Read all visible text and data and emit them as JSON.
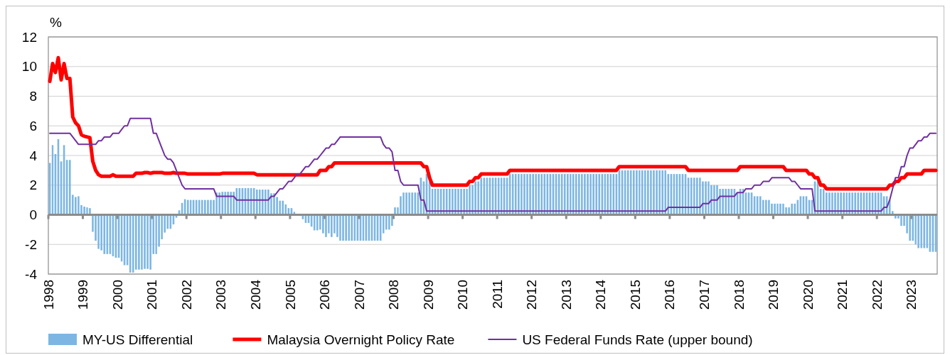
{
  "chart_data": {
    "type": "bar",
    "ylabel": "%",
    "x": [
      "1998-01",
      "1998-02",
      "1998-03",
      "1998-04",
      "1998-05",
      "1998-06",
      "1998-07",
      "1998-08",
      "1998-09",
      "1998-10",
      "1998-11",
      "1998-12",
      "1999-01",
      "1999-02",
      "1999-03",
      "1999-04",
      "1999-05",
      "1999-06",
      "1999-07",
      "1999-08",
      "1999-09",
      "1999-10",
      "1999-11",
      "1999-12",
      "2000-01",
      "2000-02",
      "2000-03",
      "2000-04",
      "2000-05",
      "2000-06",
      "2000-07",
      "2000-08",
      "2000-09",
      "2000-10",
      "2000-11",
      "2000-12",
      "2001-01",
      "2001-02",
      "2001-03",
      "2001-04",
      "2001-05",
      "2001-06",
      "2001-07",
      "2001-08",
      "2001-09",
      "2001-10",
      "2001-11",
      "2001-12",
      "2002-01",
      "2002-02",
      "2002-03",
      "2002-04",
      "2002-05",
      "2002-06",
      "2002-07",
      "2002-08",
      "2002-09",
      "2002-10",
      "2002-11",
      "2002-12",
      "2003-01",
      "2003-02",
      "2003-03",
      "2003-04",
      "2003-05",
      "2003-06",
      "2003-07",
      "2003-08",
      "2003-09",
      "2003-10",
      "2003-11",
      "2003-12",
      "2004-01",
      "2004-02",
      "2004-03",
      "2004-04",
      "2004-05",
      "2004-06",
      "2004-07",
      "2004-08",
      "2004-09",
      "2004-10",
      "2004-11",
      "2004-12",
      "2005-01",
      "2005-02",
      "2005-03",
      "2005-04",
      "2005-05",
      "2005-06",
      "2005-07",
      "2005-08",
      "2005-09",
      "2005-10",
      "2005-11",
      "2005-12",
      "2006-01",
      "2006-02",
      "2006-03",
      "2006-04",
      "2006-05",
      "2006-06",
      "2006-07",
      "2006-08",
      "2006-09",
      "2006-10",
      "2006-11",
      "2006-12",
      "2007-01",
      "2007-02",
      "2007-03",
      "2007-04",
      "2007-05",
      "2007-06",
      "2007-07",
      "2007-08",
      "2007-09",
      "2007-10",
      "2007-11",
      "2007-12",
      "2008-01",
      "2008-02",
      "2008-03",
      "2008-04",
      "2008-05",
      "2008-06",
      "2008-07",
      "2008-08",
      "2008-09",
      "2008-10",
      "2008-11",
      "2008-12",
      "2009-01",
      "2009-02",
      "2009-03",
      "2009-04",
      "2009-05",
      "2009-06",
      "2009-07",
      "2009-08",
      "2009-09",
      "2009-10",
      "2009-11",
      "2009-12",
      "2010-01",
      "2010-02",
      "2010-03",
      "2010-04",
      "2010-05",
      "2010-06",
      "2010-07",
      "2010-08",
      "2010-09",
      "2010-10",
      "2010-11",
      "2010-12",
      "2011-01",
      "2011-02",
      "2011-03",
      "2011-04",
      "2011-05",
      "2011-06",
      "2011-07",
      "2011-08",
      "2011-09",
      "2011-10",
      "2011-11",
      "2011-12",
      "2012-01",
      "2012-02",
      "2012-03",
      "2012-04",
      "2012-05",
      "2012-06",
      "2012-07",
      "2012-08",
      "2012-09",
      "2012-10",
      "2012-11",
      "2012-12",
      "2013-01",
      "2013-02",
      "2013-03",
      "2013-04",
      "2013-05",
      "2013-06",
      "2013-07",
      "2013-08",
      "2013-09",
      "2013-10",
      "2013-11",
      "2013-12",
      "2014-01",
      "2014-02",
      "2014-03",
      "2014-04",
      "2014-05",
      "2014-06",
      "2014-07",
      "2014-08",
      "2014-09",
      "2014-10",
      "2014-11",
      "2014-12",
      "2015-01",
      "2015-02",
      "2015-03",
      "2015-04",
      "2015-05",
      "2015-06",
      "2015-07",
      "2015-08",
      "2015-09",
      "2015-10",
      "2015-11",
      "2015-12",
      "2016-01",
      "2016-02",
      "2016-03",
      "2016-04",
      "2016-05",
      "2016-06",
      "2016-07",
      "2016-08",
      "2016-09",
      "2016-10",
      "2016-11",
      "2016-12",
      "2017-01",
      "2017-02",
      "2017-03",
      "2017-04",
      "2017-05",
      "2017-06",
      "2017-07",
      "2017-08",
      "2017-09",
      "2017-10",
      "2017-11",
      "2017-12",
      "2018-01",
      "2018-02",
      "2018-03",
      "2018-04",
      "2018-05",
      "2018-06",
      "2018-07",
      "2018-08",
      "2018-09",
      "2018-10",
      "2018-11",
      "2018-12",
      "2019-01",
      "2019-02",
      "2019-03",
      "2019-04",
      "2019-05",
      "2019-06",
      "2019-07",
      "2019-08",
      "2019-09",
      "2019-10",
      "2019-11",
      "2019-12",
      "2020-01",
      "2020-02",
      "2020-03",
      "2020-04",
      "2020-05",
      "2020-06",
      "2020-07",
      "2020-08",
      "2020-09",
      "2020-10",
      "2020-11",
      "2020-12",
      "2021-01",
      "2021-02",
      "2021-03",
      "2021-04",
      "2021-05",
      "2021-06",
      "2021-07",
      "2021-08",
      "2021-09",
      "2021-10",
      "2021-11",
      "2021-12",
      "2022-01",
      "2022-02",
      "2022-03",
      "2022-04",
      "2022-05",
      "2022-06",
      "2022-07",
      "2022-08",
      "2022-09",
      "2022-10",
      "2022-11",
      "2022-12",
      "2023-01",
      "2023-02",
      "2023-03",
      "2023-04",
      "2023-05",
      "2023-06",
      "2023-07",
      "2023-08",
      "2023-09"
    ],
    "series": [
      {
        "name": "MY-US Differential",
        "color": "#7db6e3",
        "values": [
          3.5,
          4.7,
          4.1,
          5.1,
          3.6,
          4.7,
          3.7,
          3.7,
          1.35,
          1.2,
          1.25,
          0.65,
          0.55,
          0.5,
          0.45,
          -1.15,
          -1.75,
          -2.3,
          -2.4,
          -2.65,
          -2.65,
          -2.65,
          -2.8,
          -2.9,
          -2.9,
          -3.15,
          -3.4,
          -3.4,
          -3.9,
          -3.9,
          -3.7,
          -3.7,
          -3.7,
          -3.65,
          -3.65,
          -3.7,
          -2.65,
          -2.65,
          -2.15,
          -1.65,
          -1.2,
          -0.95,
          -0.95,
          -0.65,
          -0.2,
          0.3,
          0.8,
          1.05,
          1.0,
          1.0,
          1.0,
          1.0,
          1.0,
          1.0,
          1.0,
          1.0,
          1.0,
          1.0,
          1.5,
          1.5,
          1.55,
          1.55,
          1.55,
          1.55,
          1.55,
          1.8,
          1.8,
          1.8,
          1.8,
          1.8,
          1.8,
          1.8,
          1.7,
          1.7,
          1.7,
          1.7,
          1.7,
          1.45,
          1.45,
          1.2,
          0.95,
          0.95,
          0.7,
          0.45,
          0.45,
          0.2,
          -0.05,
          null,
          -0.3,
          -0.55,
          -0.55,
          -0.8,
          -1.05,
          -1.05,
          -1.0,
          -1.25,
          -1.5,
          -1.25,
          -1.5,
          -1.25,
          -1.5,
          -1.75,
          -1.75,
          -1.75,
          -1.75,
          -1.75,
          -1.75,
          -1.75,
          -1.75,
          -1.75,
          -1.75,
          -1.75,
          -1.75,
          -1.75,
          -1.75,
          -1.75,
          -1.25,
          -1.0,
          -1.0,
          -0.75,
          0.5,
          0.5,
          1.25,
          1.5,
          1.5,
          1.5,
          1.5,
          1.5,
          1.5,
          2.5,
          2.25,
          2.75,
          2.25,
          1.75,
          1.75,
          1.75,
          1.75,
          1.75,
          1.75,
          1.75,
          1.75,
          1.75,
          1.75,
          1.75,
          1.75,
          1.75,
          2.0,
          2.0,
          2.25,
          2.25,
          2.5,
          2.5,
          2.5,
          2.5,
          2.5,
          2.5,
          2.5,
          2.5,
          2.5,
          2.5,
          2.75,
          2.75,
          2.75,
          2.75,
          2.75,
          2.75,
          2.75,
          2.75,
          2.75,
          2.75,
          2.75,
          2.75,
          2.75,
          2.75,
          2.75,
          2.75,
          2.75,
          2.75,
          2.75,
          2.75,
          2.75,
          2.75,
          2.75,
          2.75,
          2.75,
          2.75,
          2.75,
          2.75,
          2.75,
          2.75,
          2.75,
          2.75,
          2.75,
          2.75,
          2.75,
          2.75,
          2.75,
          2.75,
          3.0,
          3.0,
          3.0,
          3.0,
          3.0,
          3.0,
          3.0,
          3.0,
          3.0,
          3.0,
          3.0,
          3.0,
          3.0,
          3.0,
          3.0,
          3.0,
          3.0,
          2.75,
          2.75,
          2.75,
          2.75,
          2.75,
          2.75,
          2.75,
          2.5,
          2.5,
          2.5,
          2.5,
          2.5,
          2.25,
          2.25,
          2.25,
          2.0,
          2.0,
          2.0,
          1.75,
          1.75,
          1.75,
          1.75,
          1.75,
          1.75,
          1.5,
          1.75,
          1.75,
          1.5,
          1.5,
          1.5,
          1.25,
          1.25,
          1.25,
          1.0,
          1.0,
          1.0,
          0.75,
          0.75,
          0.75,
          0.75,
          0.75,
          0.5,
          0.5,
          0.75,
          0.75,
          1.0,
          1.25,
          1.25,
          1.25,
          1.0,
          1.0,
          2.25,
          2.25,
          1.75,
          1.75,
          1.5,
          1.5,
          1.5,
          1.5,
          1.5,
          1.5,
          1.5,
          1.5,
          1.5,
          1.5,
          1.5,
          1.5,
          1.5,
          1.5,
          1.5,
          1.5,
          1.5,
          1.5,
          1.5,
          1.5,
          1.25,
          1.25,
          1.0,
          0.25,
          -0.25,
          -0.25,
          -0.75,
          -0.75,
          -1.25,
          -1.75,
          -1.75,
          -2.0,
          -2.25,
          -2.25,
          -2.25,
          -2.25,
          -2.5,
          -2.5,
          -2.5
        ]
      },
      {
        "name": "Malaysia Overnight Policy Rate",
        "type": "line",
        "color": "#ff0000",
        "values": [
          9.0,
          10.2,
          9.6,
          10.6,
          9.1,
          10.2,
          9.2,
          9.2,
          6.6,
          6.2,
          6.0,
          5.4,
          5.3,
          5.25,
          5.2,
          3.6,
          3.0,
          2.7,
          2.6,
          2.6,
          2.6,
          2.6,
          2.7,
          2.6,
          2.6,
          2.6,
          2.6,
          2.6,
          2.6,
          2.6,
          2.8,
          2.8,
          2.8,
          2.85,
          2.85,
          2.8,
          2.85,
          2.85,
          2.85,
          2.85,
          2.8,
          2.8,
          2.8,
          2.85,
          2.8,
          2.8,
          2.8,
          2.8,
          2.75,
          2.75,
          2.75,
          2.75,
          2.75,
          2.75,
          2.75,
          2.75,
          2.75,
          2.75,
          2.75,
          2.75,
          2.8,
          2.8,
          2.8,
          2.8,
          2.8,
          2.8,
          2.8,
          2.8,
          2.8,
          2.8,
          2.8,
          2.8,
          2.7,
          2.7,
          2.7,
          2.7,
          2.7,
          2.7,
          2.7,
          2.7,
          2.7,
          2.7,
          2.7,
          2.7,
          2.7,
          2.7,
          2.7,
          2.7,
          2.7,
          2.7,
          2.7,
          2.7,
          2.7,
          2.7,
          3.0,
          3.0,
          3.0,
          3.25,
          3.25,
          3.5,
          3.5,
          3.5,
          3.5,
          3.5,
          3.5,
          3.5,
          3.5,
          3.5,
          3.5,
          3.5,
          3.5,
          3.5,
          3.5,
          3.5,
          3.5,
          3.5,
          3.5,
          3.5,
          3.5,
          3.5,
          3.5,
          3.5,
          3.5,
          3.5,
          3.5,
          3.5,
          3.5,
          3.5,
          3.5,
          3.5,
          3.25,
          3.25,
          2.5,
          2.0,
          2.0,
          2.0,
          2.0,
          2.0,
          2.0,
          2.0,
          2.0,
          2.0,
          2.0,
          2.0,
          2.0,
          2.0,
          2.25,
          2.25,
          2.5,
          2.5,
          2.75,
          2.75,
          2.75,
          2.75,
          2.75,
          2.75,
          2.75,
          2.75,
          2.75,
          2.75,
          3.0,
          3.0,
          3.0,
          3.0,
          3.0,
          3.0,
          3.0,
          3.0,
          3.0,
          3.0,
          3.0,
          3.0,
          3.0,
          3.0,
          3.0,
          3.0,
          3.0,
          3.0,
          3.0,
          3.0,
          3.0,
          3.0,
          3.0,
          3.0,
          3.0,
          3.0,
          3.0,
          3.0,
          3.0,
          3.0,
          3.0,
          3.0,
          3.0,
          3.0,
          3.0,
          3.0,
          3.0,
          3.0,
          3.25,
          3.25,
          3.25,
          3.25,
          3.25,
          3.25,
          3.25,
          3.25,
          3.25,
          3.25,
          3.25,
          3.25,
          3.25,
          3.25,
          3.25,
          3.25,
          3.25,
          3.25,
          3.25,
          3.25,
          3.25,
          3.25,
          3.25,
          3.25,
          3.0,
          3.0,
          3.0,
          3.0,
          3.0,
          3.0,
          3.0,
          3.0,
          3.0,
          3.0,
          3.0,
          3.0,
          3.0,
          3.0,
          3.0,
          3.0,
          3.0,
          3.0,
          3.25,
          3.25,
          3.25,
          3.25,
          3.25,
          3.25,
          3.25,
          3.25,
          3.25,
          3.25,
          3.25,
          3.25,
          3.25,
          3.25,
          3.25,
          3.25,
          3.0,
          3.0,
          3.0,
          3.0,
          3.0,
          3.0,
          3.0,
          3.0,
          2.75,
          2.75,
          2.5,
          2.5,
          2.0,
          2.0,
          1.75,
          1.75,
          1.75,
          1.75,
          1.75,
          1.75,
          1.75,
          1.75,
          1.75,
          1.75,
          1.75,
          1.75,
          1.75,
          1.75,
          1.75,
          1.75,
          1.75,
          1.75,
          1.75,
          1.75,
          1.75,
          1.75,
          2.0,
          2.0,
          2.25,
          2.25,
          2.5,
          2.5,
          2.75,
          2.75,
          2.75,
          2.75,
          2.75,
          2.75,
          3.0,
          3.0,
          3.0,
          3.0,
          3.0
        ]
      },
      {
        "name": "US Federal Funds Rate (upper bound)",
        "type": "line",
        "color": "#7030a0",
        "values": [
          5.5,
          5.5,
          5.5,
          5.5,
          5.5,
          5.5,
          5.5,
          5.5,
          5.25,
          5.0,
          4.75,
          4.75,
          4.75,
          4.75,
          4.75,
          4.75,
          4.75,
          5.0,
          5.0,
          5.25,
          5.25,
          5.25,
          5.5,
          5.5,
          5.5,
          5.75,
          6.0,
          6.0,
          6.5,
          6.5,
          6.5,
          6.5,
          6.5,
          6.5,
          6.5,
          6.5,
          5.5,
          5.5,
          5.0,
          4.5,
          4.0,
          3.75,
          3.75,
          3.5,
          3.0,
          2.5,
          2.0,
          1.75,
          1.75,
          1.75,
          1.75,
          1.75,
          1.75,
          1.75,
          1.75,
          1.75,
          1.75,
          1.75,
          1.25,
          1.25,
          1.25,
          1.25,
          1.25,
          1.25,
          1.25,
          1.0,
          1.0,
          1.0,
          1.0,
          1.0,
          1.0,
          1.0,
          1.0,
          1.0,
          1.0,
          1.0,
          1.0,
          1.25,
          1.25,
          1.5,
          1.75,
          1.75,
          2.0,
          2.25,
          2.25,
          2.5,
          2.75,
          2.75,
          3.0,
          3.25,
          3.25,
          3.5,
          3.75,
          3.75,
          4.0,
          4.25,
          4.5,
          4.5,
          4.75,
          4.75,
          5.0,
          5.25,
          5.25,
          5.25,
          5.25,
          5.25,
          5.25,
          5.25,
          5.25,
          5.25,
          5.25,
          5.25,
          5.25,
          5.25,
          5.25,
          5.25,
          4.75,
          4.5,
          4.5,
          4.25,
          3.0,
          3.0,
          2.25,
          2.0,
          2.0,
          2.0,
          2.0,
          2.0,
          2.0,
          1.0,
          1.0,
          0.25,
          0.25,
          0.25,
          0.25,
          0.25,
          0.25,
          0.25,
          0.25,
          0.25,
          0.25,
          0.25,
          0.25,
          0.25,
          0.25,
          0.25,
          0.25,
          0.25,
          0.25,
          0.25,
          0.25,
          0.25,
          0.25,
          0.25,
          0.25,
          0.25,
          0.25,
          0.25,
          0.25,
          0.25,
          0.25,
          0.25,
          0.25,
          0.25,
          0.25,
          0.25,
          0.25,
          0.25,
          0.25,
          0.25,
          0.25,
          0.25,
          0.25,
          0.25,
          0.25,
          0.25,
          0.25,
          0.25,
          0.25,
          0.25,
          0.25,
          0.25,
          0.25,
          0.25,
          0.25,
          0.25,
          0.25,
          0.25,
          0.25,
          0.25,
          0.25,
          0.25,
          0.25,
          0.25,
          0.25,
          0.25,
          0.25,
          0.25,
          0.25,
          0.25,
          0.25,
          0.25,
          0.25,
          0.25,
          0.25,
          0.25,
          0.25,
          0.25,
          0.25,
          0.25,
          0.25,
          0.25,
          0.25,
          0.25,
          0.25,
          0.5,
          0.5,
          0.5,
          0.5,
          0.5,
          0.5,
          0.5,
          0.5,
          0.5,
          0.5,
          0.5,
          0.5,
          0.75,
          0.75,
          0.75,
          1.0,
          1.0,
          1.0,
          1.25,
          1.25,
          1.25,
          1.25,
          1.25,
          1.25,
          1.5,
          1.5,
          1.5,
          1.75,
          1.75,
          1.75,
          2.0,
          2.0,
          2.0,
          2.25,
          2.25,
          2.25,
          2.5,
          2.5,
          2.5,
          2.5,
          2.5,
          2.5,
          2.5,
          2.25,
          2.25,
          2.0,
          1.75,
          1.75,
          1.75,
          1.75,
          1.75,
          0.25,
          0.25,
          0.25,
          0.25,
          0.25,
          0.25,
          0.25,
          0.25,
          0.25,
          0.25,
          0.25,
          0.25,
          0.25,
          0.25,
          0.25,
          0.25,
          0.25,
          0.25,
          0.25,
          0.25,
          0.25,
          0.25,
          0.25,
          0.25,
          0.5,
          0.5,
          1.0,
          1.75,
          2.5,
          2.5,
          3.25,
          3.25,
          4.0,
          4.5,
          4.5,
          4.75,
          5.0,
          5.0,
          5.25,
          5.25,
          5.5,
          5.5,
          5.5
        ]
      }
    ],
    "xlim": [
      "1998-01",
      "2023-10"
    ],
    "xticks": [
      "1998",
      "1999",
      "2000",
      "2001",
      "2002",
      "2003",
      "2004",
      "2005",
      "2006",
      "2007",
      "2008",
      "2009",
      "2010",
      "2011",
      "2012",
      "2013",
      "2014",
      "2015",
      "2016",
      "2017",
      "2018",
      "2019",
      "2020",
      "2021",
      "2022",
      "2023"
    ],
    "ylim": [
      -4,
      12
    ],
    "yticks": [
      -4,
      -2,
      0,
      2,
      4,
      6,
      8,
      10,
      12
    ],
    "grid": "y",
    "legend": "bottom"
  }
}
